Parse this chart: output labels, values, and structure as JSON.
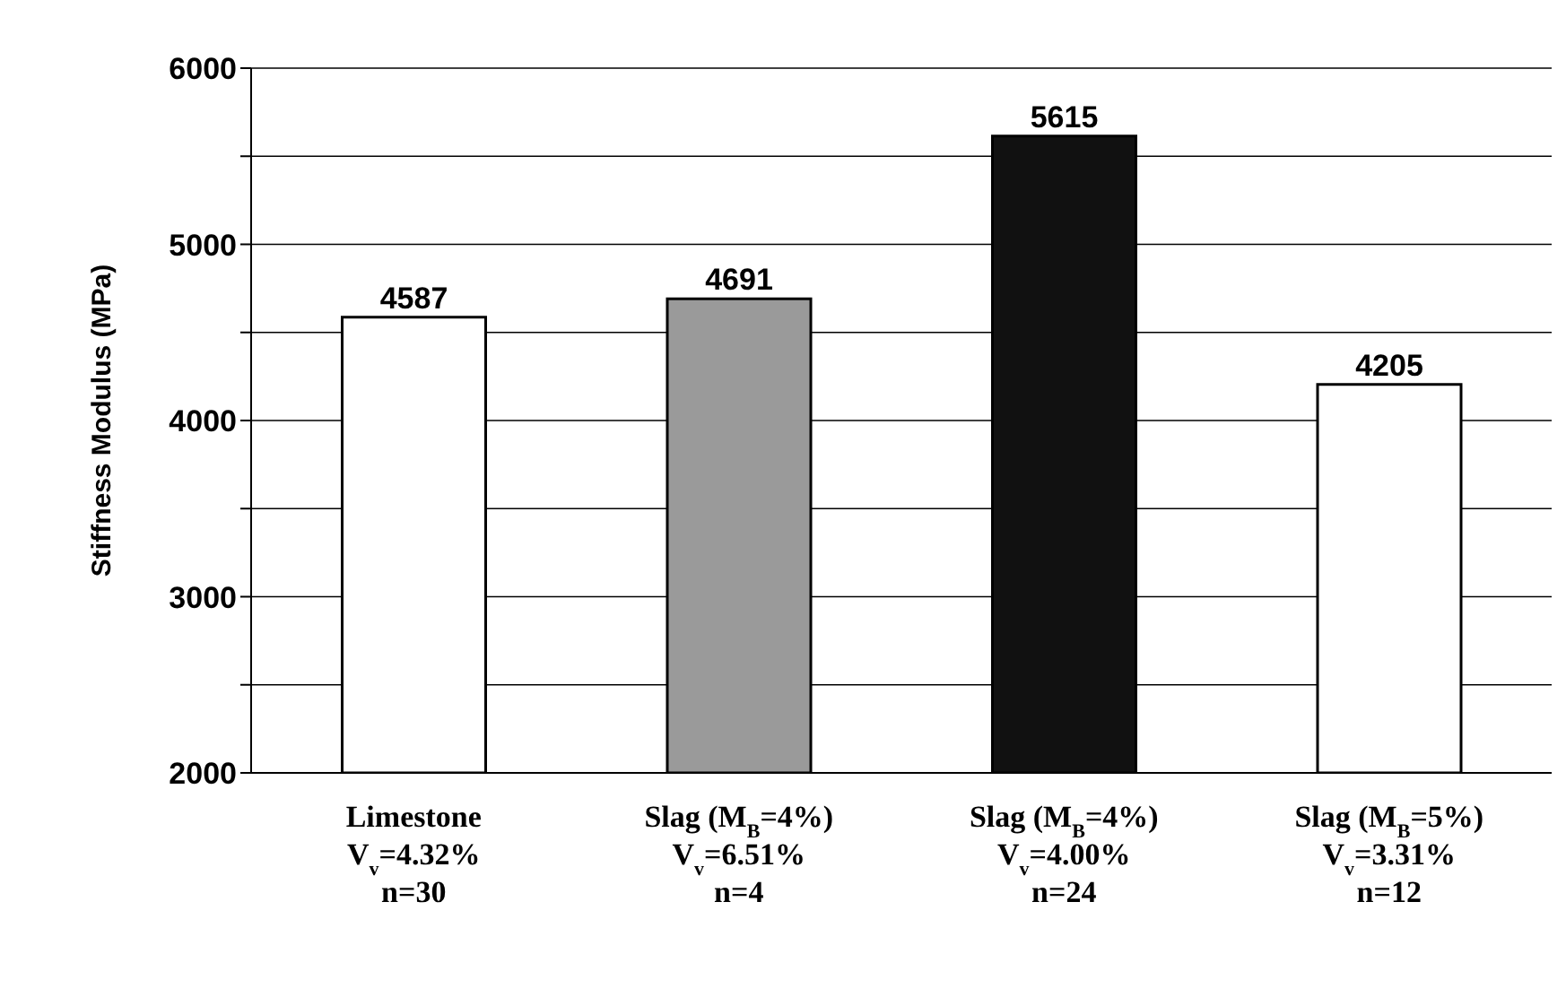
{
  "chart_data": {
    "type": "bar",
    "ylabel": "Stiffness Modulus (MPa)",
    "categories": [
      "Limestone\nV$_{v}$=4.32%\nn=30",
      "Slag (M$_{B}$=4%)\nV$_{v}$=6.51%\nn=4",
      "Slag (M$_{B}$=4%)\nV$_{v}$=4.00%\nn=24",
      "Slag (M$_{B}$=5%)\nV$_{v}$=3.31%\nn=12"
    ],
    "values": [
      4587,
      4691,
      5615,
      4205
    ],
    "colors": [
      "#ffffff",
      "#9a9a9a",
      "#111111",
      "#ffffff"
    ],
    "ylim": [
      2000,
      6000
    ],
    "yticks": [
      2000,
      {
        "value": 2500,
        "label": null
      },
      3000,
      {
        "value": 3500,
        "label": null
      },
      4000,
      {
        "value": 4500,
        "label": null
      },
      5000,
      {
        "value": 5500,
        "label": null
      },
      6000
    ],
    "grid": "y",
    "data_labels": true
  }
}
